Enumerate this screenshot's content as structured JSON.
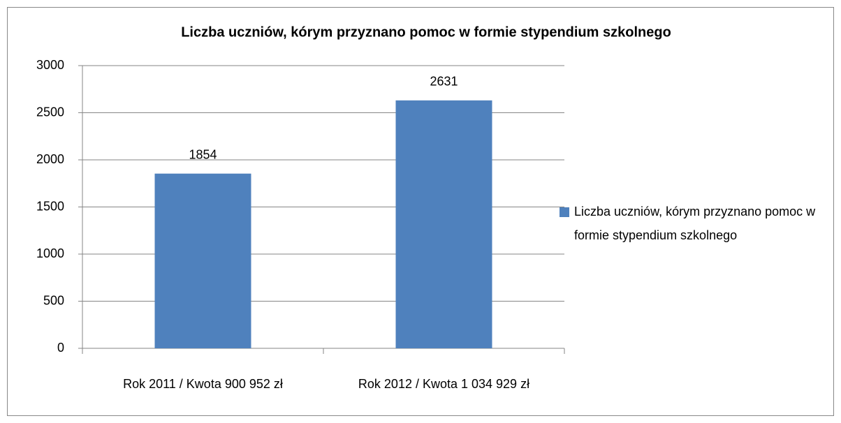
{
  "chart_data": {
    "type": "bar",
    "title": "Liczba uczniów, kórym przyznano pomoc w formie stypendium szkolnego",
    "categories": [
      "Rok 2011 / Kwota 900 952 zł",
      "Rok 2012 / Kwota 1 034 929 zł"
    ],
    "series": [
      {
        "name": "Liczba uczniów, kórym przyznano pomoc w formie stypendium szkolnego",
        "color": "#4f81bd",
        "values": [
          1854,
          2631
        ]
      }
    ],
    "ylim": [
      0,
      3000
    ],
    "yticks": [
      0,
      500,
      1000,
      1500,
      2000,
      2500,
      3000
    ],
    "grid": true,
    "legend": "right"
  }
}
